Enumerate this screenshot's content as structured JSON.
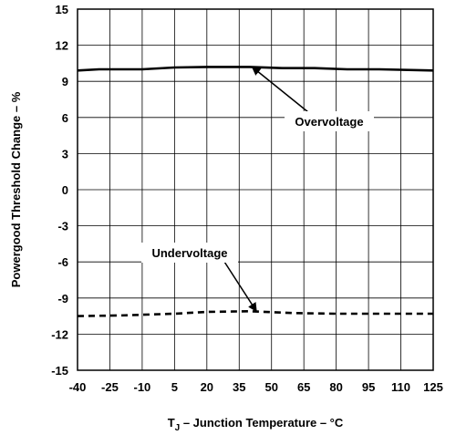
{
  "chart_data": {
    "type": "line",
    "xlabel_prefix": "T",
    "xlabel_sub": "J",
    "xlabel_rest": " – Junction Temperature – °C",
    "ylabel": "Powergood Threshold Change – %",
    "x_ticks": [
      "-40",
      "-25",
      "-10",
      "5",
      "20",
      "35",
      "50",
      "65",
      "80",
      "95",
      "110",
      "125"
    ],
    "y_ticks": [
      "15",
      "12",
      "9",
      "6",
      "3",
      "0",
      "-3",
      "-6",
      "-9",
      "-12",
      "-15"
    ],
    "xlim": [
      -40,
      125
    ],
    "ylim": [
      -15,
      15
    ],
    "grid": true,
    "series": [
      {
        "name": "Overvoltage",
        "style": "solid",
        "points": [
          [
            -40,
            9.9
          ],
          [
            -30,
            10.0
          ],
          [
            -10,
            10.0
          ],
          [
            5,
            10.15
          ],
          [
            20,
            10.2
          ],
          [
            40,
            10.2
          ],
          [
            55,
            10.1
          ],
          [
            70,
            10.1
          ],
          [
            85,
            10.0
          ],
          [
            100,
            10.0
          ],
          [
            125,
            9.9
          ]
        ]
      },
      {
        "name": "Undervoltage",
        "style": "dashed",
        "points": [
          [
            -40,
            -10.5
          ],
          [
            -20,
            -10.45
          ],
          [
            5,
            -10.3
          ],
          [
            20,
            -10.15
          ],
          [
            40,
            -10.1
          ],
          [
            60,
            -10.25
          ],
          [
            80,
            -10.3
          ],
          [
            100,
            -10.3
          ],
          [
            125,
            -10.3
          ]
        ]
      }
    ],
    "annotations": [
      {
        "text": "Overvoltage",
        "series": 0,
        "arrow_to": [
          41,
          10.2
        ]
      },
      {
        "text": "Undervoltage",
        "series": 1,
        "arrow_to": [
          43,
          -10.1
        ]
      }
    ]
  }
}
